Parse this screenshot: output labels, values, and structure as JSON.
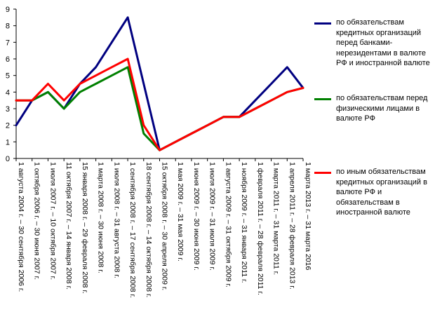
{
  "chart_data": {
    "type": "line",
    "title": "",
    "xlabel": "",
    "ylabel": "",
    "ylim": [
      0,
      9
    ],
    "yticks": [
      0,
      1,
      2,
      3,
      4,
      5,
      6,
      7,
      8,
      9
    ],
    "grid": false,
    "legend_position": "right",
    "categories": [
      "1 августа 2004 г. – 30 сентября 2006 г.",
      "1 октября 2006 г. – 30 июня 2007 г.",
      "1 июля 2007 г. – 10 октября 2007 г.",
      "11 октября 2007 г. – 14 января 2008 г.",
      "15 января 2008 г. – 29 февраля 2008 г.",
      "1 марта 2008 г. – 30 июня 2008 г.",
      "1 июля 2008 г. – 31 августа 2008 г.",
      "1 сентября 2008 г. – 17 сентября 2008 г.",
      "18 сентября 2008 г. – 14 октября 2008 г.",
      "15 октября 2008 г. – 30 апреля 2009 г.",
      "1 мая 2009 г. – 31 мая 2009 г.",
      "1 июня 2009 г. – 30 июня 2009 г.",
      "1 июля 2009 г. – 31 июля 2009 г.",
      "1 августа 2009 г. – 31 октября 2009 г.",
      "1 ноября 2009 г. – 31 января 2011 г.",
      "1 февраля 2011 г. – 28 февраля 2011 г.",
      "1 марта 2011 г. – 31 марта 2011 г.",
      "1 апреля 2011 г. – 28 февраля 2013 г.",
      "1 марта 2013 г. – 31 марта 2016"
    ],
    "series": [
      {
        "name": "по обязательствам кредитных организаций перед банками-нерезидентами в валюте РФ и иностранной валюте",
        "color": "#000080",
        "values": [
          2,
          3.5,
          4,
          3,
          4.5,
          5.5,
          7,
          8.5,
          4.5,
          0.5,
          1,
          1.5,
          2,
          2.5,
          2.5,
          3.5,
          4.5,
          5.5,
          4.25
        ]
      },
      {
        "name": "по обязательствам перед физическими лицами в валюте РФ",
        "color": "#008000",
        "values": [
          3.5,
          3.5,
          4,
          3,
          4,
          4.5,
          5,
          5.5,
          1.5,
          0.5,
          1,
          1.5,
          2,
          2.5,
          2.5,
          3,
          3.5,
          4,
          4.25
        ]
      },
      {
        "name": "по иным обязательствам кредитных организаций в валюте РФ и обязательствам в иностранной валюте",
        "color": "#ff0000",
        "values": [
          3.5,
          3.5,
          4.5,
          3.5,
          4.5,
          5,
          5.5,
          6,
          2,
          0.5,
          1,
          1.5,
          2,
          2.5,
          2.5,
          3,
          3.5,
          4,
          4.25
        ]
      }
    ]
  }
}
